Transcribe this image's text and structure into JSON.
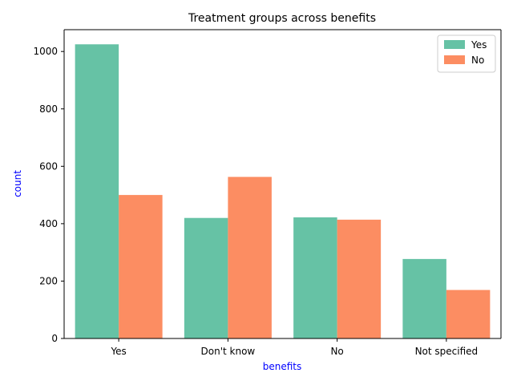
{
  "chart_data": {
    "type": "bar",
    "title": "Treatment groups across benefits",
    "xlabel": "benefits",
    "ylabel": "count",
    "label_color": "#0000ff",
    "categories": [
      "Yes",
      "Don't know",
      "No",
      "Not specified"
    ],
    "series": [
      {
        "name": "Yes",
        "color": "#66c2a5",
        "values": [
          1025,
          420,
          422,
          277
        ]
      },
      {
        "name": "No",
        "color": "#fc8d62",
        "values": [
          500,
          563,
          414,
          169
        ]
      }
    ],
    "ylim": [
      0,
      1076
    ],
    "yticks": [
      0,
      200,
      400,
      600,
      800,
      1000
    ],
    "legend_position": "top-right",
    "grid": false
  }
}
